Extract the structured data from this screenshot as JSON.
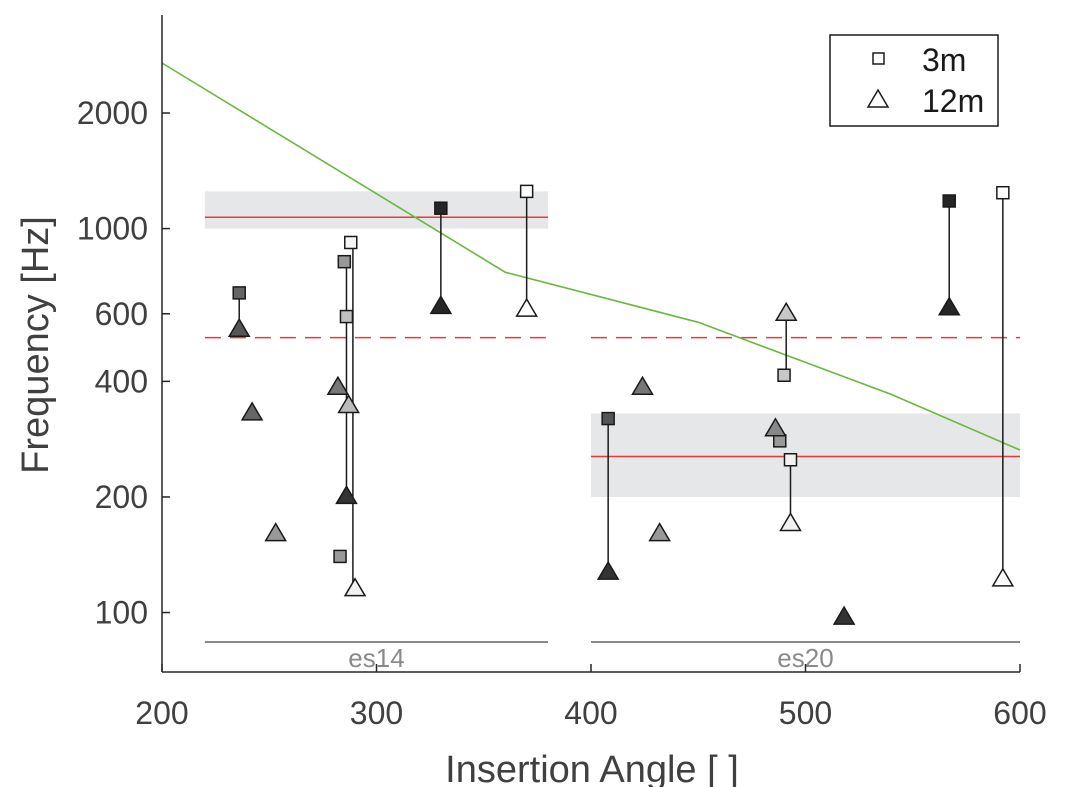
{
  "chart_data": {
    "type": "scatter",
    "title": "",
    "xlabel": "Insertion Angle [  ]",
    "ylabel": "Frequency [Hz]",
    "xlim": [
      200,
      600
    ],
    "ylim": [
      70,
      3600
    ],
    "yscale": "log",
    "xticks": [
      200,
      300,
      400,
      500,
      600
    ],
    "yticks": [
      100,
      200,
      400,
      600,
      1000,
      2000
    ],
    "grid": false,
    "legend": {
      "placement": "top-right",
      "entries": [
        {
          "label": "3m",
          "marker": "square"
        },
        {
          "label": "12m",
          "marker": "triangle"
        }
      ]
    },
    "groups": [
      {
        "label": "es14",
        "x_range": [
          220,
          380
        ],
        "band_hz": [
          1000,
          1250
        ],
        "median_hz": 1070,
        "reference_hz": 520
      },
      {
        "label": "es20",
        "x_range": [
          400,
          600
        ],
        "band_hz": [
          200,
          330
        ],
        "median_hz": 255,
        "reference_hz": 520
      }
    ],
    "reference_curve": {
      "color": "#6ab83f",
      "x": [
        200,
        360,
        450,
        540,
        600
      ],
      "y": [
        2700,
        770,
        570,
        370,
        265
      ]
    },
    "colors": {
      "band": "#e6e7e9",
      "median_line": "#e8393e",
      "reference_line": "#e8393e",
      "stem": "#1a1a1a"
    },
    "series": [
      {
        "name": "3m",
        "marker": "square",
        "points": [
          {
            "x": 236,
            "y": 680,
            "shade": "#666666"
          },
          {
            "x": 285,
            "y": 820,
            "shade": "#999999"
          },
          {
            "x": 288,
            "y": 920,
            "shade": "#f5f5f5"
          },
          {
            "x": 286,
            "y": 590,
            "shade": "#c0c0c0"
          },
          {
            "x": 283,
            "y": 140,
            "shade": "#999999"
          },
          {
            "x": 330,
            "y": 1130,
            "shade": "#262626"
          },
          {
            "x": 370,
            "y": 1250,
            "shade": "#ffffff"
          },
          {
            "x": 408,
            "y": 320,
            "shade": "#555555"
          },
          {
            "x": 490,
            "y": 415,
            "shade": "#c8c8c8"
          },
          {
            "x": 488,
            "y": 280,
            "shade": "#999999"
          },
          {
            "x": 493,
            "y": 250,
            "shade": "#f2f2f2"
          },
          {
            "x": 567,
            "y": 1180,
            "shade": "#262626"
          },
          {
            "x": 592,
            "y": 1240,
            "shade": "#ffffff"
          }
        ]
      },
      {
        "name": "12m",
        "marker": "triangle",
        "points": [
          {
            "x": 236,
            "y": 545,
            "shade": "#555555"
          },
          {
            "x": 242,
            "y": 330,
            "shade": "#666666"
          },
          {
            "x": 253,
            "y": 160,
            "shade": "#999999"
          },
          {
            "x": 282,
            "y": 385,
            "shade": "#777777"
          },
          {
            "x": 286,
            "y": 200,
            "shade": "#333333"
          },
          {
            "x": 287,
            "y": 345,
            "shade": "#bbbbbb"
          },
          {
            "x": 290,
            "y": 115,
            "shade": "#f2f2f2"
          },
          {
            "x": 330,
            "y": 625,
            "shade": "#262626"
          },
          {
            "x": 370,
            "y": 615,
            "shade": "#ffffff"
          },
          {
            "x": 408,
            "y": 127,
            "shade": "#333333"
          },
          {
            "x": 424,
            "y": 385,
            "shade": "#777777"
          },
          {
            "x": 432,
            "y": 160,
            "shade": "#999999"
          },
          {
            "x": 486,
            "y": 300,
            "shade": "#888888"
          },
          {
            "x": 491,
            "y": 600,
            "shade": "#c8c8c8"
          },
          {
            "x": 493,
            "y": 170,
            "shade": "#f2f2f2"
          },
          {
            "x": 518,
            "y": 97,
            "shade": "#333333"
          },
          {
            "x": 567,
            "y": 620,
            "shade": "#262626"
          },
          {
            "x": 592,
            "y": 122,
            "shade": "#ffffff"
          }
        ]
      }
    ],
    "stems": [
      {
        "x": 236,
        "y0": 545,
        "y1": 680
      },
      {
        "x": 286,
        "y0": 200,
        "y1": 820
      },
      {
        "x": 289,
        "y0": 115,
        "y1": 920
      },
      {
        "x": 330,
        "y0": 625,
        "y1": 1130
      },
      {
        "x": 370,
        "y0": 615,
        "y1": 1250
      },
      {
        "x": 408,
        "y0": 127,
        "y1": 320
      },
      {
        "x": 491,
        "y0": 415,
        "y1": 600
      },
      {
        "x": 493,
        "y0": 170,
        "y1": 250
      },
      {
        "x": 567,
        "y0": 620,
        "y1": 1180
      },
      {
        "x": 592,
        "y0": 122,
        "y1": 1240
      }
    ]
  }
}
